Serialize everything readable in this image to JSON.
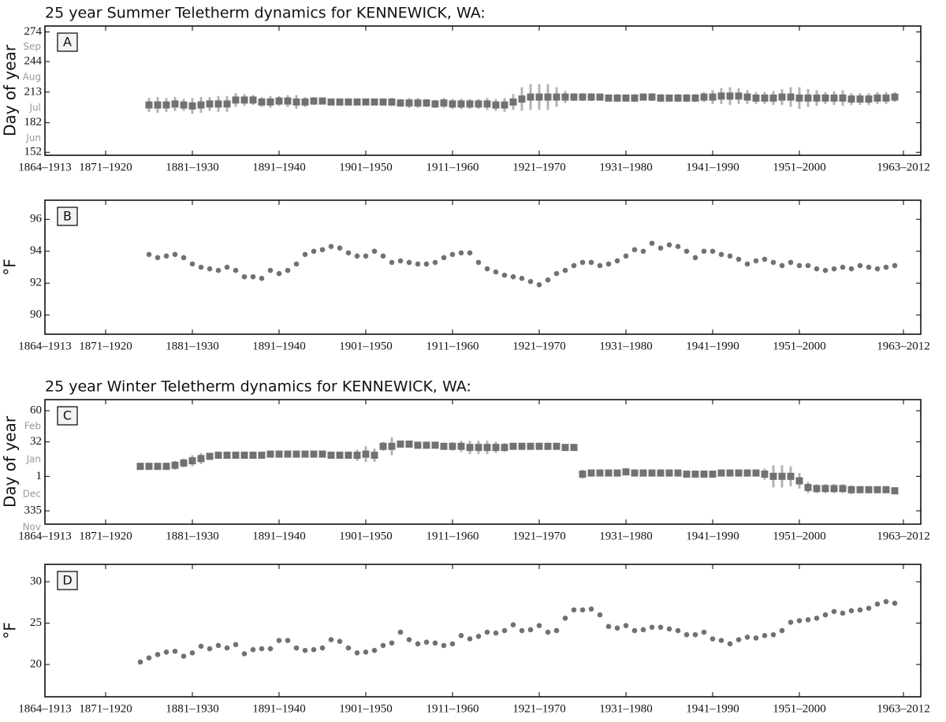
{
  "chart_data": [
    {
      "type": "errorbar",
      "title": "25 year Summer Teletherm dynamics for KENNEWICK, WA:",
      "panel": "A",
      "ylabel": "Day of year",
      "color": "#717171",
      "error_color": "#b3b3b3",
      "x": [
        1876,
        1877,
        1878,
        1879,
        1880,
        1881,
        1882,
        1883,
        1884,
        1885,
        1886,
        1887,
        1888,
        1889,
        1890,
        1891,
        1892,
        1893,
        1894,
        1895,
        1896,
        1897,
        1898,
        1899,
        1900,
        1901,
        1902,
        1903,
        1904,
        1905,
        1906,
        1907,
        1908,
        1909,
        1910,
        1911,
        1912,
        1913,
        1914,
        1915,
        1916,
        1917,
        1918,
        1919,
        1920,
        1921,
        1922,
        1923,
        1924,
        1925,
        1926,
        1927,
        1928,
        1929,
        1930,
        1931,
        1932,
        1933,
        1934,
        1935,
        1936,
        1937,
        1938,
        1939,
        1940,
        1941,
        1942,
        1943,
        1944,
        1945,
        1946,
        1947,
        1948,
        1949,
        1950,
        1951,
        1952,
        1953,
        1954,
        1955,
        1956,
        1957,
        1958,
        1959,
        1960,
        1961,
        1962
      ],
      "values": [
        200,
        200,
        200,
        201,
        200,
        199,
        200,
        201,
        201,
        201,
        205,
        205,
        205,
        203,
        203,
        204,
        204,
        203,
        203,
        204,
        204,
        203,
        203,
        203,
        203,
        203,
        203,
        203,
        203,
        202,
        202,
        202,
        202,
        201,
        202,
        201,
        201,
        201,
        201,
        201,
        200,
        200,
        203,
        206,
        208,
        208,
        208,
        208,
        208,
        208,
        208,
        208,
        208,
        207,
        207,
        207,
        207,
        208,
        208,
        207,
        207,
        207,
        207,
        207,
        208,
        208,
        209,
        209,
        209,
        208,
        207,
        207,
        207,
        208,
        208,
        207,
        207,
        207,
        207,
        207,
        207,
        206,
        206,
        206,
        207,
        207,
        208
      ],
      "errors": [
        7,
        8,
        7,
        7,
        6,
        8,
        8,
        7,
        8,
        8,
        7,
        6,
        5,
        5,
        6,
        5,
        6,
        7,
        5,
        4,
        3,
        3,
        3,
        2,
        3,
        3,
        3,
        3,
        4,
        4,
        5,
        5,
        4,
        4,
        5,
        5,
        5,
        5,
        5,
        6,
        6,
        7,
        8,
        12,
        13,
        13,
        13,
        10,
        6,
        4,
        4,
        4,
        3,
        3,
        4,
        3,
        4,
        3,
        4,
        4,
        3,
        4,
        4,
        4,
        5,
        7,
        8,
        9,
        8,
        7,
        6,
        6,
        7,
        8,
        10,
        11,
        9,
        8,
        6,
        7,
        8,
        6,
        6,
        6,
        6,
        6,
        5
      ],
      "xlim": [
        1864,
        1965
      ],
      "xticks": [
        {
          "value": 1864,
          "label": "1864–1913"
        },
        {
          "value": 1871,
          "label": "1871–1920"
        },
        {
          "value": 1881,
          "label": "1881–1930"
        },
        {
          "value": 1891,
          "label": "1891–1940"
        },
        {
          "value": 1901,
          "label": "1901–1950"
        },
        {
          "value": 1911,
          "label": "1911–1960"
        },
        {
          "value": 1921,
          "label": "1921–1970"
        },
        {
          "value": 1931,
          "label": "1931–1980"
        },
        {
          "value": 1941,
          "label": "1941–1990"
        },
        {
          "value": 1951,
          "label": "1951–2000"
        },
        {
          "value": 1963,
          "label": "1963–2012"
        }
      ],
      "ylim": [
        149,
        280
      ],
      "yticks": [
        152,
        182,
        213,
        244,
        274
      ],
      "month_labels": [
        {
          "value": 259,
          "label": "Sep"
        },
        {
          "value": 228,
          "label": "Aug"
        },
        {
          "value": 197,
          "label": "Jul"
        },
        {
          "value": 166,
          "label": "Jun"
        }
      ]
    },
    {
      "type": "scatter",
      "panel": "B",
      "ylabel": "°F",
      "color": "#717171",
      "x": [
        1876,
        1877,
        1878,
        1879,
        1880,
        1881,
        1882,
        1883,
        1884,
        1885,
        1886,
        1887,
        1888,
        1889,
        1890,
        1891,
        1892,
        1893,
        1894,
        1895,
        1896,
        1897,
        1898,
        1899,
        1900,
        1901,
        1902,
        1903,
        1904,
        1905,
        1906,
        1907,
        1908,
        1909,
        1910,
        1911,
        1912,
        1913,
        1914,
        1915,
        1916,
        1917,
        1918,
        1919,
        1920,
        1921,
        1922,
        1923,
        1924,
        1925,
        1926,
        1927,
        1928,
        1929,
        1930,
        1931,
        1932,
        1933,
        1934,
        1935,
        1936,
        1937,
        1938,
        1939,
        1940,
        1941,
        1942,
        1943,
        1944,
        1945,
        1946,
        1947,
        1948,
        1949,
        1950,
        1951,
        1952,
        1953,
        1954,
        1955,
        1956,
        1957,
        1958,
        1959,
        1960,
        1961,
        1962
      ],
      "values": [
        93.8,
        93.6,
        93.7,
        93.8,
        93.6,
        93.2,
        93.0,
        92.9,
        92.8,
        93.0,
        92.8,
        92.4,
        92.4,
        92.3,
        92.8,
        92.6,
        92.8,
        93.2,
        93.8,
        94.0,
        94.1,
        94.3,
        94.2,
        93.9,
        93.7,
        93.7,
        94.0,
        93.7,
        93.3,
        93.4,
        93.3,
        93.2,
        93.2,
        93.3,
        93.6,
        93.8,
        93.9,
        93.9,
        93.3,
        92.9,
        92.7,
        92.5,
        92.4,
        92.3,
        92.1,
        91.9,
        92.2,
        92.6,
        92.8,
        93.1,
        93.3,
        93.3,
        93.1,
        93.2,
        93.4,
        93.7,
        94.1,
        94.0,
        94.5,
        94.2,
        94.4,
        94.3,
        94.0,
        93.6,
        94.0,
        94.0,
        93.8,
        93.7,
        93.5,
        93.2,
        93.4,
        93.5,
        93.3,
        93.1,
        93.3,
        93.1,
        93.1,
        92.9,
        92.8,
        92.9,
        93.0,
        92.9,
        93.1,
        93.0,
        92.9,
        93.0,
        93.1
      ],
      "xlim": [
        1864,
        1965
      ],
      "xticks": [
        {
          "value": 1864,
          "label": "1864–1913"
        },
        {
          "value": 1871,
          "label": "1871–1920"
        },
        {
          "value": 1881,
          "label": "1881–1930"
        },
        {
          "value": 1891,
          "label": "1891–1940"
        },
        {
          "value": 1901,
          "label": "1901–1950"
        },
        {
          "value": 1911,
          "label": "1911–1960"
        },
        {
          "value": 1921,
          "label": "1921–1970"
        },
        {
          "value": 1931,
          "label": "1931–1980"
        },
        {
          "value": 1941,
          "label": "1941–1990"
        },
        {
          "value": 1951,
          "label": "1951–2000"
        },
        {
          "value": 1963,
          "label": "1963–2012"
        }
      ],
      "ylim": [
        88.8,
        97.2
      ],
      "yticks": [
        90,
        92,
        94,
        96
      ]
    },
    {
      "type": "errorbar",
      "title": "25 year Winter Teletherm dynamics for KENNEWICK, WA:",
      "panel": "C",
      "ylabel": "Day of year",
      "color": "#717171",
      "error_color": "#b3b3b3",
      "x": [
        1875,
        1876,
        1877,
        1878,
        1879,
        1880,
        1881,
        1882,
        1883,
        1884,
        1885,
        1886,
        1887,
        1888,
        1889,
        1890,
        1891,
        1892,
        1893,
        1894,
        1895,
        1896,
        1897,
        1898,
        1899,
        1900,
        1901,
        1902,
        1903,
        1904,
        1905,
        1906,
        1907,
        1908,
        1909,
        1910,
        1911,
        1912,
        1913,
        1914,
        1915,
        1916,
        1917,
        1918,
        1919,
        1920,
        1921,
        1922,
        1923,
        1924,
        1925,
        1926,
        1927,
        1928,
        1929,
        1930,
        1931,
        1932,
        1933,
        1934,
        1935,
        1936,
        1937,
        1938,
        1939,
        1940,
        1941,
        1942,
        1943,
        1944,
        1945,
        1946,
        1947,
        1948,
        1949,
        1950,
        1951,
        1952,
        1953,
        1954,
        1955,
        1956,
        1957,
        1958,
        1959,
        1960,
        1961,
        1962
      ],
      "values": [
        10,
        10,
        10,
        10,
        11,
        13,
        15,
        17,
        19,
        20,
        20,
        20,
        20,
        20,
        20,
        21,
        21,
        21,
        21,
        21,
        21,
        21,
        20,
        20,
        20,
        20,
        21,
        20,
        28,
        28,
        30,
        30,
        29,
        29,
        29,
        28,
        28,
        28,
        27,
        27,
        27,
        27,
        27,
        28,
        28,
        28,
        28,
        28,
        28,
        27,
        27,
        3,
        4,
        4,
        4,
        4,
        5,
        4,
        4,
        4,
        4,
        4,
        4,
        3,
        3,
        3,
        3,
        4,
        4,
        4,
        4,
        4,
        3,
        1,
        1,
        1,
        -3,
        -9,
        -10,
        -10,
        -10,
        -10,
        -11,
        -11,
        -11,
        -11,
        -11,
        -12
      ],
      "errors": [
        3,
        3,
        3,
        3,
        4,
        4,
        5,
        5,
        3,
        2,
        2,
        2,
        2,
        2,
        2,
        2,
        2,
        2,
        2,
        2,
        2,
        2,
        2,
        2,
        3,
        5,
        7,
        6,
        4,
        8,
        3,
        2,
        2,
        2,
        2,
        3,
        4,
        5,
        6,
        6,
        6,
        5,
        4,
        3,
        3,
        3,
        2,
        2,
        2,
        2,
        3,
        4,
        3,
        3,
        2,
        2,
        2,
        2,
        2,
        2,
        2,
        2,
        2,
        2,
        2,
        2,
        2,
        2,
        2,
        2,
        2,
        3,
        5,
        10,
        10,
        9,
        7,
        5,
        4,
        4,
        4,
        4,
        4,
        3,
        3,
        3,
        3,
        3
      ],
      "xlim": [
        1864,
        1965
      ],
      "xticks": [
        {
          "value": 1864,
          "label": "1864–1913"
        },
        {
          "value": 1871,
          "label": "1871–1920"
        },
        {
          "value": 1881,
          "label": "1881–1930"
        },
        {
          "value": 1891,
          "label": "1891–1940"
        },
        {
          "value": 1901,
          "label": "1901–1950"
        },
        {
          "value": 1911,
          "label": "1911–1960"
        },
        {
          "value": 1921,
          "label": "1921–1970"
        },
        {
          "value": 1931,
          "label": "1931–1980"
        },
        {
          "value": 1941,
          "label": "1941–1990"
        },
        {
          "value": 1951,
          "label": "1951–2000"
        },
        {
          "value": 1963,
          "label": "1963–2012"
        }
      ],
      "ylim": [
        -42,
        70
      ],
      "yticks": [
        60,
        32,
        1,
        {
          "value": -30,
          "label": "335"
        }
      ],
      "month_labels": [
        {
          "value": 46,
          "label": "Feb"
        },
        {
          "value": 16,
          "label": "Jan"
        },
        {
          "value": -15,
          "label": "Dec"
        },
        {
          "value": -45,
          "label": "Nov"
        }
      ]
    },
    {
      "type": "scatter",
      "panel": "D",
      "ylabel": "°F",
      "color": "#717171",
      "x": [
        1875,
        1876,
        1877,
        1878,
        1879,
        1880,
        1881,
        1882,
        1883,
        1884,
        1885,
        1886,
        1887,
        1888,
        1889,
        1890,
        1891,
        1892,
        1893,
        1894,
        1895,
        1896,
        1897,
        1898,
        1899,
        1900,
        1901,
        1902,
        1903,
        1904,
        1905,
        1906,
        1907,
        1908,
        1909,
        1910,
        1911,
        1912,
        1913,
        1914,
        1915,
        1916,
        1917,
        1918,
        1919,
        1920,
        1921,
        1922,
        1923,
        1924,
        1925,
        1926,
        1927,
        1928,
        1929,
        1930,
        1931,
        1932,
        1933,
        1934,
        1935,
        1936,
        1937,
        1938,
        1939,
        1940,
        1941,
        1942,
        1943,
        1944,
        1945,
        1946,
        1947,
        1948,
        1949,
        1950,
        1951,
        1952,
        1953,
        1954,
        1955,
        1956,
        1957,
        1958,
        1959,
        1960,
        1961,
        1962
      ],
      "values": [
        20.3,
        20.8,
        21.2,
        21.5,
        21.6,
        21.0,
        21.4,
        22.2,
        21.9,
        22.3,
        22.0,
        22.4,
        21.3,
        21.8,
        21.9,
        21.9,
        22.9,
        22.9,
        22.0,
        21.7,
        21.8,
        22.0,
        23.0,
        22.8,
        22.0,
        21.4,
        21.5,
        21.7,
        22.3,
        22.6,
        23.9,
        23.0,
        22.5,
        22.7,
        22.6,
        22.3,
        22.5,
        23.5,
        23.1,
        23.4,
        23.9,
        23.8,
        24.1,
        24.8,
        24.1,
        24.2,
        24.7,
        23.9,
        24.1,
        25.6,
        26.6,
        26.6,
        26.7,
        26.0,
        24.6,
        24.4,
        24.7,
        24.1,
        24.2,
        24.5,
        24.5,
        24.3,
        24.1,
        23.6,
        23.6,
        23.9,
        23.1,
        22.9,
        22.5,
        23.0,
        23.3,
        23.2,
        23.5,
        23.6,
        24.1,
        25.1,
        25.3,
        25.4,
        25.6,
        26.0,
        26.4,
        26.2,
        26.5,
        26.6,
        26.8,
        27.3,
        27.6,
        27.4
      ],
      "xlim": [
        1864,
        1965
      ],
      "xticks": [
        {
          "value": 1864,
          "label": "1864–1913"
        },
        {
          "value": 1871,
          "label": "1871–1920"
        },
        {
          "value": 1881,
          "label": "1881–1930"
        },
        {
          "value": 1891,
          "label": "1891–1940"
        },
        {
          "value": 1901,
          "label": "1901–1950"
        },
        {
          "value": 1911,
          "label": "1911–1960"
        },
        {
          "value": 1921,
          "label": "1921–1970"
        },
        {
          "value": 1931,
          "label": "1931–1980"
        },
        {
          "value": 1941,
          "label": "1941–1990"
        },
        {
          "value": 1951,
          "label": "1951–2000"
        },
        {
          "value": 1963,
          "label": "1963–2012"
        }
      ],
      "ylim": [
        16.1,
        32.1
      ],
      "yticks": [
        20,
        25,
        30
      ]
    }
  ]
}
